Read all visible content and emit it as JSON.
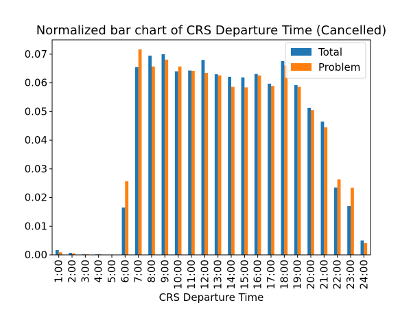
{
  "chart_data": {
    "type": "bar",
    "title": "Normalized bar chart of CRS Departure Time (Cancelled)",
    "xlabel": "CRS Departure Time",
    "ylabel": "",
    "ylim": [
      0,
      0.075
    ],
    "yticks": [
      "0.00",
      "0.01",
      "0.02",
      "0.03",
      "0.04",
      "0.05",
      "0.06",
      "0.07"
    ],
    "ytick_values": [
      0,
      0.01,
      0.02,
      0.03,
      0.04,
      0.05,
      0.06,
      0.07
    ],
    "grid": false,
    "legend_position": "top-right",
    "categories": [
      "1:00",
      "2:00",
      "3:00",
      "4:00",
      "5:00",
      "6:00",
      "7:00",
      "8:00",
      "9:00",
      "10:00",
      "11:00",
      "12:00",
      "13:00",
      "14:00",
      "15:00",
      "16:00",
      "17:00",
      "18:00",
      "19:00",
      "20:00",
      "21:00",
      "22:00",
      "23:00",
      "24:00"
    ],
    "series": [
      {
        "name": "Total",
        "color": "#1f77b4",
        "values": [
          0.0017,
          0.0007,
          0.0002,
          0.0002,
          0.0001,
          0.0165,
          0.0655,
          0.0695,
          0.07,
          0.064,
          0.0643,
          0.068,
          0.063,
          0.0621,
          0.0619,
          0.0631,
          0.0597,
          0.0676,
          0.0592,
          0.0513,
          0.0465,
          0.0235,
          0.017,
          0.005
        ]
      },
      {
        "name": "Problem",
        "color": "#ff7f0e",
        "values": [
          0.0009,
          0.0005,
          0.0002,
          0.0002,
          0.0001,
          0.0257,
          0.0717,
          0.0657,
          0.0681,
          0.0657,
          0.0642,
          0.0635,
          0.0626,
          0.0586,
          0.0584,
          0.0626,
          0.0589,
          0.066,
          0.0586,
          0.0505,
          0.0445,
          0.0263,
          0.0234,
          0.0041
        ]
      }
    ]
  }
}
